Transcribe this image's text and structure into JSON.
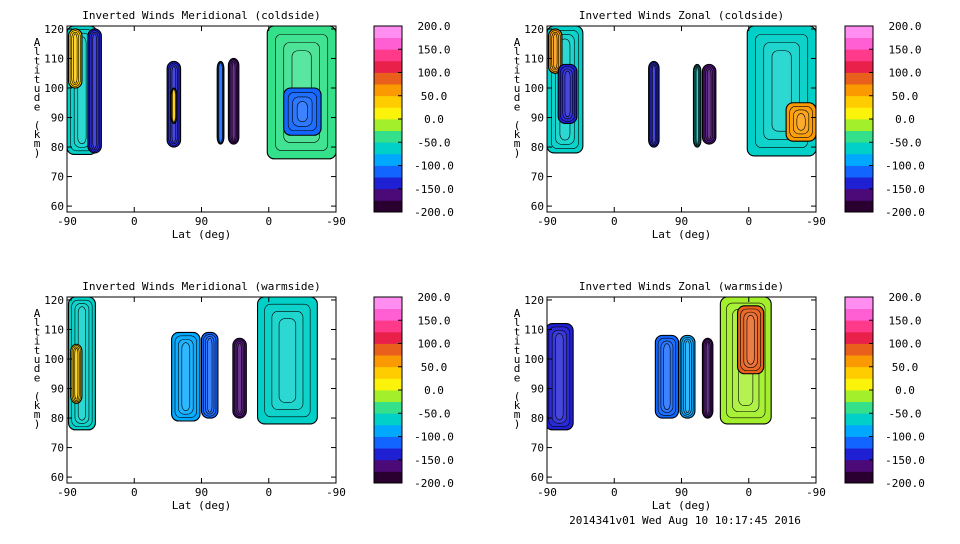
{
  "footer_text": "2014341v01 Wed Aug 10 10:17:45 2016",
  "colorbar": {
    "ticks": [
      "200.0",
      "150.0",
      "100.0",
      "50.0",
      "0.0",
      "-50.0",
      "-100.0",
      "-150.0",
      "-200.0"
    ],
    "range": [
      -200,
      200
    ],
    "colors": [
      "#2a0030",
      "#4b0a78",
      "#1f1fd4",
      "#1266ff",
      "#00a8ff",
      "#00d0c8",
      "#35e08a",
      "#a4ef2c",
      "#fbf40a",
      "#ffcc00",
      "#fa9a00",
      "#e8601c",
      "#e8204a",
      "#ff3a8a",
      "#ff5fd2",
      "#ff8ef0"
    ]
  },
  "chart_data": [
    {
      "type": "contour",
      "title": "Inverted Winds Meridional (coldside)",
      "xlabel": "Lat (deg)",
      "ylabel": "Altitude (km)",
      "xticks": [
        "-90",
        "0",
        "90",
        "0",
        "-90"
      ],
      "yticks": [
        "60",
        "70",
        "80",
        "90",
        "100",
        "110",
        "120"
      ],
      "ylim": [
        58,
        121
      ],
      "zlim": [
        -200,
        200
      ],
      "blobs": [
        {
          "x0": -90,
          "x1": -50,
          "y0": 77.5,
          "y1": 121,
          "value": -60
        },
        {
          "x0": -88,
          "x1": -70,
          "y0": 100,
          "y1": 120,
          "value": 40
        },
        {
          "x0": -62,
          "x1": -44,
          "y0": 78,
          "y1": 120,
          "value": -135
        },
        {
          "x0": 44,
          "x1": 62,
          "y0": 80,
          "y1": 109,
          "value": -140
        },
        {
          "x0": 49,
          "x1": 57,
          "y0": 88,
          "y1": 100,
          "value": 45
        },
        {
          "x0": 111,
          "x1": 120,
          "y0": 81,
          "y1": 109,
          "value": -120
        },
        {
          "x0": 126,
          "x1": 140,
          "y0": 81,
          "y1": 110,
          "value": -170
        },
        {
          "x0": 178,
          "x1": 270,
          "y0": 76,
          "y1": 121,
          "value": -45
        },
        {
          "x0": 200,
          "x1": 250,
          "y0": 84,
          "y1": 100,
          "value": -110
        }
      ]
    },
    {
      "type": "contour",
      "title": "Inverted Winds Zonal (coldside)",
      "xlabel": "Lat (deg)",
      "ylabel": "Altitude (km)",
      "xticks": [
        "-90",
        "0",
        "90",
        "0",
        "-90"
      ],
      "yticks": [
        "60",
        "70",
        "80",
        "90",
        "100",
        "110",
        "120"
      ],
      "ylim": [
        58,
        121
      ],
      "zlim": [
        -200,
        200
      ],
      "blobs": [
        {
          "x0": -90,
          "x1": -42,
          "y0": 78,
          "y1": 121,
          "value": -75
        },
        {
          "x0": -88,
          "x1": -70,
          "y0": 105,
          "y1": 120,
          "value": 60
        },
        {
          "x0": -75,
          "x1": -50,
          "y0": 88,
          "y1": 108,
          "value": -130
        },
        {
          "x0": 46,
          "x1": 60,
          "y0": 80,
          "y1": 109,
          "value": -150
        },
        {
          "x0": 106,
          "x1": 116,
          "y0": 80,
          "y1": 108,
          "value": -70
        },
        {
          "x0": 118,
          "x1": 136,
          "y0": 81,
          "y1": 108,
          "value": -160
        },
        {
          "x0": 178,
          "x1": 270,
          "y0": 77,
          "y1": 121,
          "value": -70
        },
        {
          "x0": 230,
          "x1": 270,
          "y0": 82,
          "y1": 95,
          "value": 70
        }
      ]
    },
    {
      "type": "contour",
      "title": "Inverted Winds Meridional (warmside)",
      "xlabel": "Lat (deg)",
      "ylabel": "Altitude (km)",
      "xticks": [
        "-90",
        "0",
        "90",
        "0",
        "-90"
      ],
      "yticks": [
        "60",
        "70",
        "80",
        "90",
        "100",
        "110",
        "120"
      ],
      "ylim": [
        58,
        121
      ],
      "zlim": [
        -200,
        200
      ],
      "blobs": [
        {
          "x0": -88,
          "x1": -52,
          "y0": 76,
          "y1": 121,
          "value": -70
        },
        {
          "x0": -85,
          "x1": -70,
          "y0": 85,
          "y1": 105,
          "value": 30
        },
        {
          "x0": 50,
          "x1": 88,
          "y0": 79,
          "y1": 109,
          "value": -100
        },
        {
          "x0": 90,
          "x1": 112,
          "y0": 80,
          "y1": 109,
          "value": -110
        },
        {
          "x0": 132,
          "x1": 150,
          "y0": 80,
          "y1": 107,
          "value": -170
        },
        {
          "x0": 165,
          "x1": 245,
          "y0": 78,
          "y1": 121,
          "value": -60
        }
      ]
    },
    {
      "type": "contour",
      "title": "Inverted Winds Zonal (warmside)",
      "xlabel": "Lat (deg)",
      "ylabel": "Altitude (km)",
      "xticks": [
        "-90",
        "0",
        "90",
        "0",
        "-90"
      ],
      "yticks": [
        "60",
        "70",
        "80",
        "90",
        "100",
        "110",
        "120"
      ],
      "ylim": [
        58,
        121
      ],
      "zlim": [
        -200,
        200
      ],
      "blobs": [
        {
          "x0": -92,
          "x1": -55,
          "y0": 76,
          "y1": 112,
          "value": -150
        },
        {
          "x0": 55,
          "x1": 86,
          "y0": 80,
          "y1": 108,
          "value": -120
        },
        {
          "x0": 88,
          "x1": 108,
          "y0": 80,
          "y1": 108,
          "value": -90
        },
        {
          "x0": 118,
          "x1": 132,
          "y0": 80,
          "y1": 107,
          "value": -170
        },
        {
          "x0": 142,
          "x1": 210,
          "y0": 78,
          "y1": 121,
          "value": -10
        },
        {
          "x0": 165,
          "x1": 200,
          "y0": 95,
          "y1": 118,
          "value": 80
        }
      ]
    }
  ]
}
